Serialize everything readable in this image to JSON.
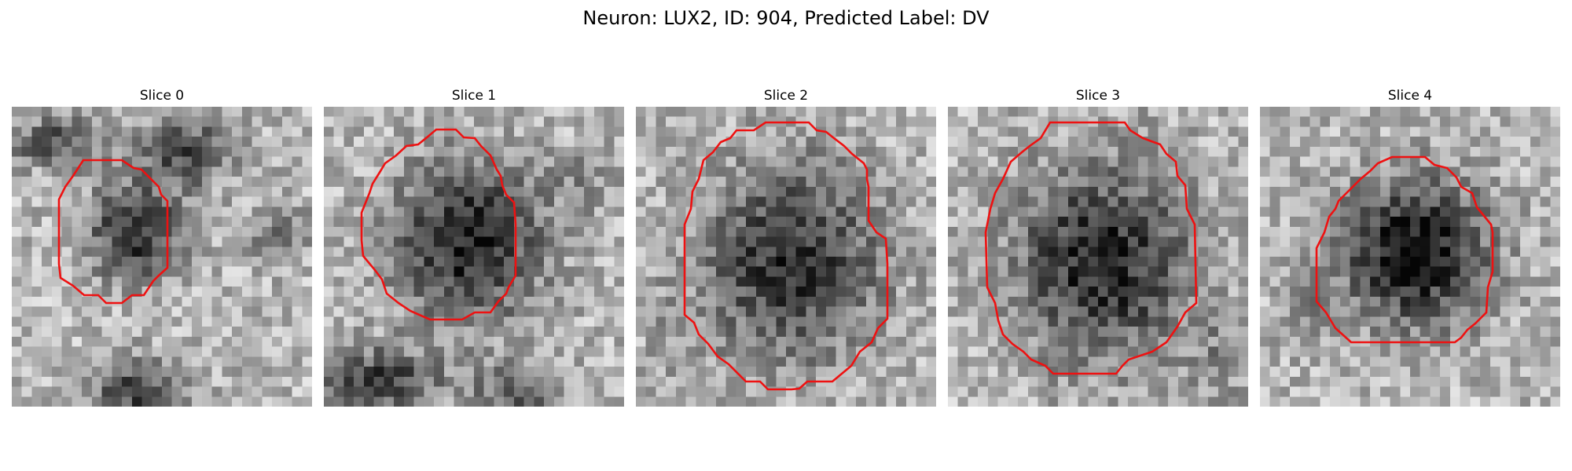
{
  "figure": {
    "title": "Neuron: LUX2, ID: 904, Predicted Label: DV"
  },
  "panels": [
    {
      "title": "Slice 0",
      "seed": 11,
      "contour_color": "#ee1111"
    },
    {
      "title": "Slice 1",
      "seed": 23,
      "contour_color": "#ee1111"
    },
    {
      "title": "Slice 2",
      "seed": 37,
      "contour_color": "#ee1111"
    },
    {
      "title": "Slice 3",
      "seed": 41,
      "contour_color": "#ee1111"
    },
    {
      "title": "Slice 4",
      "seed": 53,
      "contour_color": "#ee1111"
    }
  ]
}
